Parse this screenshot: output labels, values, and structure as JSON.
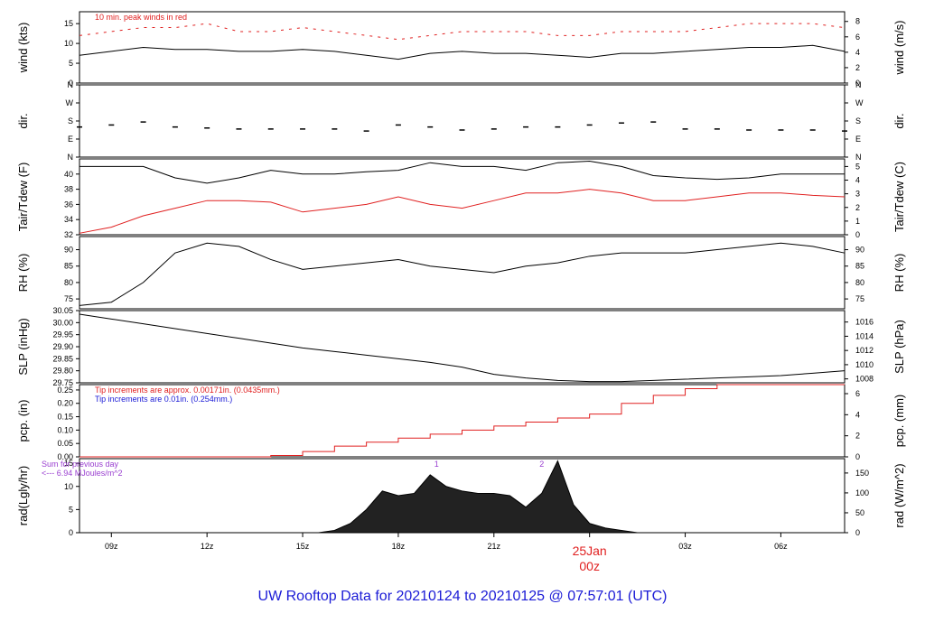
{
  "title": "UW Rooftop Data for 20210124  to  20210125 @ 07:57:01  (UTC)",
  "colors": {
    "main": "#000000",
    "accent": "#e02020",
    "blue": "#1b1bd6",
    "purple": "#9a3fd0"
  },
  "x_axis": {
    "range": [
      8,
      32
    ],
    "ticks": [
      {
        "x": 9,
        "label": "09z"
      },
      {
        "x": 12,
        "label": "12z"
      },
      {
        "x": 15,
        "label": "15z"
      },
      {
        "x": 18,
        "label": "18z"
      },
      {
        "x": 21,
        "label": "21z"
      },
      {
        "x": 27,
        "label": "03z"
      },
      {
        "x": 30,
        "label": "06z"
      }
    ],
    "day_marker": {
      "x": 24,
      "date": "25Jan",
      "hour": "00z"
    }
  },
  "chart_data": [
    {
      "type": "line",
      "ylabel": "wind (kts)",
      "ylabel_right": "wind (m/s)",
      "ylim": [
        0,
        18
      ],
      "yticks": [
        "0",
        "5",
        "10",
        "15"
      ],
      "yticks_values": [
        0,
        5,
        10,
        15
      ],
      "yticks_right": [
        "0",
        "2",
        "4",
        "6",
        "8"
      ],
      "yticks_right_values": [
        0,
        2,
        4,
        6,
        8
      ],
      "annotation": "10 min. peak winds in red",
      "x": [
        8,
        9,
        10,
        11,
        12,
        13,
        14,
        15,
        16,
        17,
        18,
        19,
        20,
        21,
        22,
        23,
        24,
        25,
        26,
        27,
        28,
        29,
        30,
        31,
        32
      ],
      "series": [
        {
          "values": [
            7,
            8,
            9,
            8.5,
            8.5,
            8,
            8,
            8.5,
            8,
            7,
            6,
            7.5,
            8,
            7.5,
            7.5,
            7,
            6.5,
            7.5,
            7.5,
            8,
            8.5,
            9,
            9,
            9.5,
            8
          ],
          "color": "#000000"
        },
        {
          "values": [
            12,
            13,
            14,
            14,
            15,
            13,
            13,
            14,
            13,
            12,
            11,
            12,
            13,
            13,
            13,
            12,
            12,
            13,
            13,
            13,
            14,
            15,
            15,
            15,
            14
          ],
          "color": "#e02020",
          "style": "dash"
        }
      ]
    },
    {
      "type": "scatter",
      "ylabel": "dir.",
      "ylabel_right": "dir.",
      "ylim": [
        0,
        360
      ],
      "yticks": [
        "N",
        "E",
        "S",
        "W",
        "N"
      ],
      "yticks_values": [
        0,
        90,
        180,
        270,
        360
      ],
      "yticks_right": [
        "N",
        "E",
        "S",
        "W",
        "N"
      ],
      "yticks_right_values": [
        0,
        90,
        180,
        270,
        360
      ],
      "x": [
        8,
        9,
        10,
        11,
        12,
        13,
        14,
        15,
        16,
        17,
        18,
        19,
        20,
        21,
        22,
        23,
        24,
        25,
        26,
        27,
        28,
        29,
        30,
        31,
        32
      ],
      "series": [
        {
          "values": [
            150,
            160,
            175,
            150,
            145,
            140,
            140,
            140,
            140,
            130,
            160,
            150,
            135,
            140,
            150,
            150,
            160,
            170,
            175,
            140,
            140,
            135,
            135,
            135,
            130
          ],
          "color": "#000000"
        }
      ]
    },
    {
      "type": "line",
      "ylabel": "Tair/Tdew (F)",
      "ylabel_right": "Tair/Tdew (C)",
      "ylim": [
        32,
        42
      ],
      "yticks": [
        "32",
        "34",
        "36",
        "38",
        "40"
      ],
      "yticks_values": [
        32,
        34,
        36,
        38,
        40
      ],
      "yticks_right": [
        "0",
        "1",
        "2",
        "3",
        "4",
        "5"
      ],
      "yticks_right_values": [
        0,
        1,
        2,
        3,
        4,
        5
      ],
      "x": [
        8,
        9,
        10,
        11,
        12,
        13,
        14,
        15,
        16,
        17,
        18,
        19,
        20,
        21,
        22,
        23,
        24,
        25,
        26,
        27,
        28,
        29,
        30,
        31,
        32
      ],
      "series": [
        {
          "values": [
            41,
            41,
            41,
            39.5,
            38.8,
            39.5,
            40.5,
            40,
            40,
            40.3,
            40.5,
            41.5,
            41,
            41,
            40.5,
            41.5,
            41.7,
            41,
            39.8,
            39.5,
            39.3,
            39.5,
            40,
            40,
            40
          ],
          "color": "#000000"
        },
        {
          "values": [
            32.2,
            33,
            34.5,
            35.5,
            36.5,
            36.5,
            36.3,
            35,
            35.5,
            36,
            37,
            36,
            35.5,
            36.5,
            37.5,
            37.5,
            38,
            37.5,
            36.5,
            36.5,
            37,
            37.5,
            37.5,
            37.2,
            37
          ],
          "color": "#e02020"
        }
      ]
    },
    {
      "type": "line",
      "ylabel": "RH (%)",
      "ylabel_right": "RH (%)",
      "ylim": [
        72,
        94
      ],
      "yticks": [
        "75",
        "80",
        "85",
        "90"
      ],
      "yticks_values": [
        75,
        80,
        85,
        90
      ],
      "yticks_right": [
        "75",
        "80",
        "85",
        "90"
      ],
      "yticks_right_values": [
        75,
        80,
        85,
        90
      ],
      "x": [
        8,
        9,
        10,
        11,
        12,
        13,
        14,
        15,
        16,
        17,
        18,
        19,
        20,
        21,
        22,
        23,
        24,
        25,
        26,
        27,
        28,
        29,
        30,
        31,
        32
      ],
      "series": [
        {
          "values": [
            73,
            74,
            80,
            89,
            92,
            91,
            87,
            84,
            85,
            86,
            87,
            85,
            84,
            83,
            85,
            86,
            88,
            89,
            89,
            89,
            90,
            91,
            92,
            91,
            89
          ],
          "color": "#000000"
        }
      ]
    },
    {
      "type": "line",
      "ylabel": "SLP (inHg)",
      "ylabel_right": "SLP (hPa)",
      "ylim": [
        29.75,
        30.05
      ],
      "yticks": [
        "29.75",
        "29.80",
        "29.85",
        "29.90",
        "29.95",
        "30.00",
        "30.05"
      ],
      "yticks_values": [
        29.75,
        29.8,
        29.85,
        29.9,
        29.95,
        30.0,
        30.05
      ],
      "yticks_right": [
        "1008",
        "1010",
        "1012",
        "1014",
        "1016"
      ],
      "yticks_right_values": [
        1008,
        1010,
        1012,
        1014,
        1016
      ],
      "x": [
        8,
        9,
        10,
        11,
        12,
        13,
        14,
        15,
        16,
        17,
        18,
        19,
        20,
        21,
        22,
        23,
        24,
        25,
        26,
        27,
        28,
        29,
        30,
        31,
        32
      ],
      "series": [
        {
          "values": [
            30.035,
            30.015,
            29.995,
            29.975,
            29.955,
            29.935,
            29.915,
            29.895,
            29.88,
            29.865,
            29.85,
            29.835,
            29.815,
            29.785,
            29.77,
            29.76,
            29.755,
            29.755,
            29.76,
            29.765,
            29.77,
            29.775,
            29.78,
            29.79,
            29.8
          ],
          "color": "#000000"
        }
      ]
    },
    {
      "type": "line",
      "ylabel": "pcp. (in)",
      "ylabel_right": "pcp. (mm)",
      "ylim": [
        0,
        0.27
      ],
      "yticks": [
        "0.00",
        "0.05",
        "0.10",
        "0.15",
        "0.20",
        "0.25"
      ],
      "yticks_values": [
        0,
        0.05,
        0.1,
        0.15,
        0.2,
        0.25
      ],
      "yticks_right": [
        "0",
        "2",
        "4",
        "6"
      ],
      "yticks_right_values": [
        0,
        2,
        4,
        6
      ],
      "annotations": [
        {
          "text": "Tip increments are approx. 0.00171in. (0.0435mm.)",
          "color": "#e02020"
        },
        {
          "text": "Tip increments are 0.01in. (0.254mm.)",
          "color": "#1b1bd6"
        }
      ],
      "x": [
        8,
        13,
        14,
        15,
        16,
        17,
        18,
        19,
        20,
        21,
        22,
        23,
        24,
        25,
        26,
        27,
        28,
        32
      ],
      "series": [
        {
          "values": [
            0,
            0,
            0.005,
            0.02,
            0.04,
            0.055,
            0.07,
            0.085,
            0.1,
            0.115,
            0.13,
            0.145,
            0.16,
            0.2,
            0.23,
            0.255,
            0.27,
            0.27
          ],
          "color": "#e02020",
          "step": true
        }
      ]
    },
    {
      "type": "area",
      "ylabel": "rad(Lgly/hr)",
      "ylabel_right": "rad (W/m^2)",
      "ylim": [
        0,
        16
      ],
      "yticks": [
        "0",
        "5",
        "10",
        "15"
      ],
      "yticks_values": [
        0,
        5,
        10,
        15
      ],
      "yticks_right": [
        "0",
        "50",
        "100",
        "150"
      ],
      "yticks_right_values": [
        0,
        50,
        100,
        150
      ],
      "annotations": [
        {
          "text": "Sum for previous day",
          "color": "#9a3fd0"
        },
        {
          "text": "<--- 6.94 MJoules/m^2",
          "color": "#9a3fd0"
        }
      ],
      "peak_labels": [
        {
          "x": 19.2,
          "label": "1"
        },
        {
          "x": 22.5,
          "label": "2"
        }
      ],
      "x": [
        15.5,
        16,
        16.5,
        17,
        17.5,
        18,
        18.5,
        19,
        19.5,
        20,
        20.5,
        21,
        21.5,
        22,
        22.5,
        23,
        23.5,
        24,
        24.5,
        25,
        25.5
      ],
      "series": [
        {
          "values": [
            0,
            0.5,
            2,
            5,
            9,
            8,
            8.5,
            12.5,
            10,
            9,
            8.5,
            8.5,
            8,
            5.5,
            8.5,
            15.5,
            6,
            2,
            1,
            0.5,
            0
          ],
          "color": "#000000"
        }
      ]
    }
  ]
}
